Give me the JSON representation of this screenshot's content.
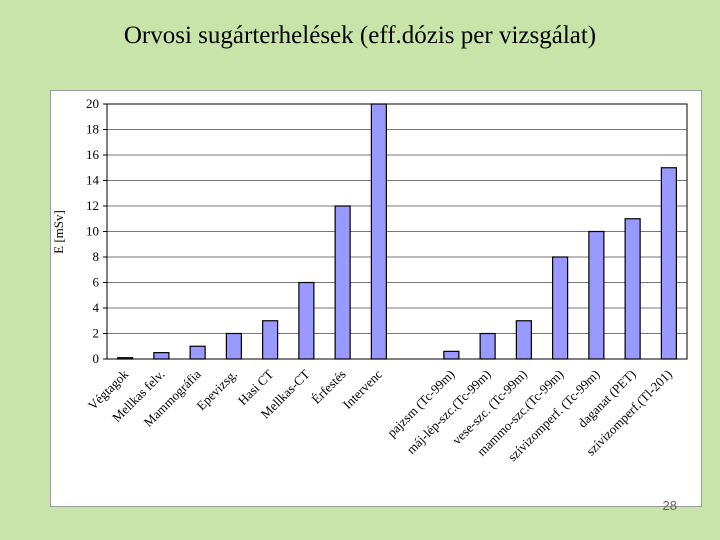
{
  "slide": {
    "title": "Orvosi sugárterhelések (eff.dózis per vizsgálat)",
    "page_number": "28"
  },
  "colors": {
    "background": "#c9e4a8",
    "bar_fill": "#9999ff",
    "bar_stroke": "#000000"
  },
  "chart_data": {
    "type": "bar",
    "title": "",
    "xlabel": "",
    "ylabel": "E [mSv]",
    "ylim": [
      0,
      20
    ],
    "yticks": [
      0,
      2,
      4,
      6,
      8,
      10,
      12,
      14,
      16,
      18,
      20
    ],
    "grid": true,
    "legend": "none",
    "categories": [
      "Végtagok",
      "Mellkas felv.",
      "Mammográfia",
      "Epevizsg.",
      "Hasi CT",
      "Mellkas-CT",
      "Érfestés",
      "Intervenc",
      "",
      "pajzsm (Tc-99m)",
      "máj-lép-szc.(Tc-99m)",
      "vese-szc. (Tc-99m)",
      "mammo-szc.(Tc-99m)",
      "szívizomperf. (Tc-99m)",
      "daganat (PET)",
      "szívizomperf.(Tl-201)"
    ],
    "values": [
      0.1,
      0.5,
      1,
      2,
      3,
      6,
      12,
      20,
      0,
      0.6,
      2,
      3,
      8,
      10,
      11,
      15
    ]
  }
}
